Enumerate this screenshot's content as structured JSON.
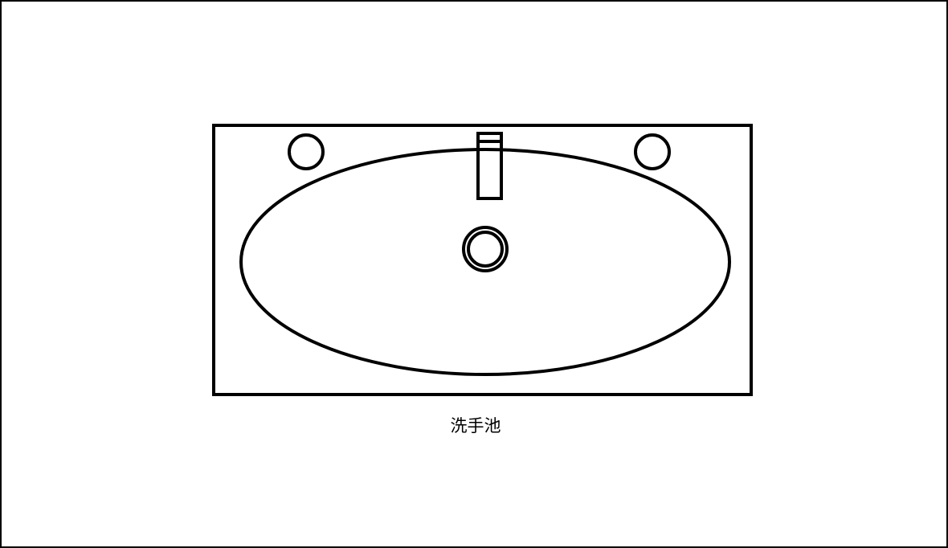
{
  "caption": "洗手池",
  "colors": {
    "stroke": "#000000",
    "background": "#ffffff"
  }
}
